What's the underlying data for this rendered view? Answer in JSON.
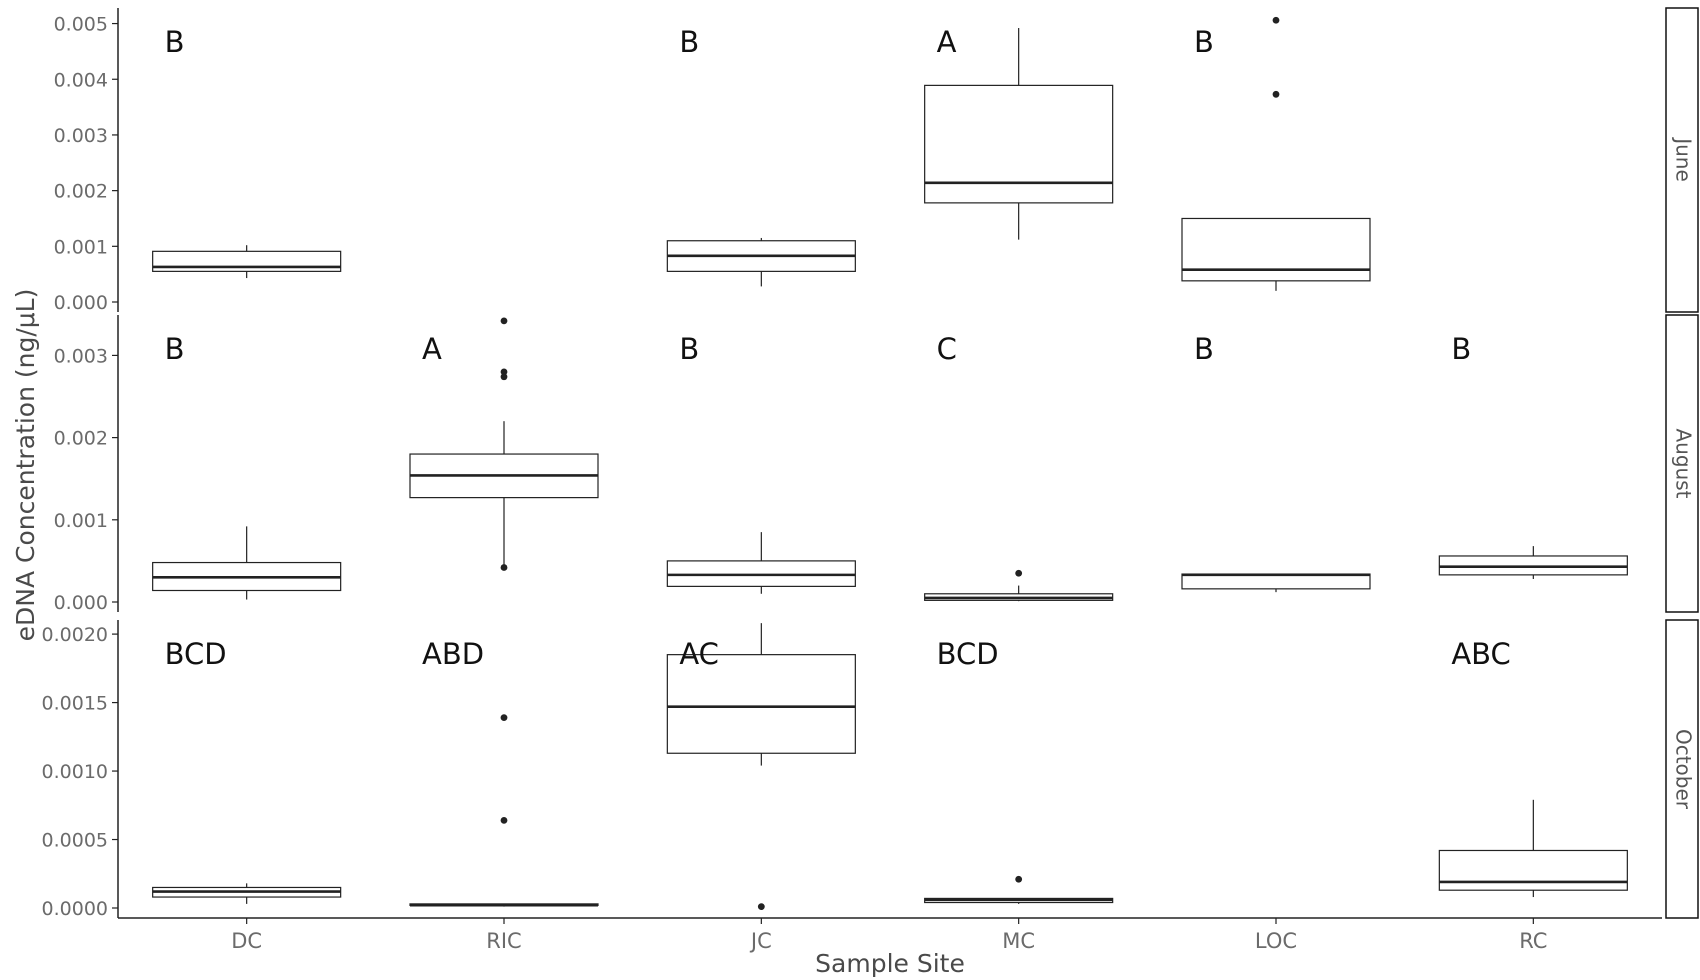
{
  "chart_data": {
    "type": "box",
    "xlabel": "Sample Site",
    "ylabel": "eDNA Concentration (ng/μL)",
    "categories": [
      "DC",
      "RIC",
      "JC",
      "MC",
      "LOC",
      "RC"
    ],
    "colors": {
      "box": "#222222",
      "axis": "#222222",
      "strip_border": "#111111",
      "background": "#ffffff"
    },
    "panels": [
      {
        "strip": "June",
        "ylim": [
          0,
          0.0051
        ],
        "yticks": [
          0.0,
          0.001,
          0.002,
          0.003,
          0.004,
          0.005
        ],
        "ytick_labels": [
          "0.000",
          "0.001",
          "0.002",
          "0.003",
          "0.004",
          "0.005"
        ],
        "letters": {
          "DC": "B",
          "JC": "B",
          "MC": "A",
          "LOC": "B"
        },
        "boxes": [
          {
            "site": "DC",
            "lower": 0.00043,
            "q1": 0.00055,
            "median": 0.00063,
            "q3": 0.00091,
            "upper": 0.00102,
            "outliers": []
          },
          {
            "site": "JC",
            "lower": 0.00028,
            "q1": 0.00055,
            "median": 0.00083,
            "q3": 0.0011,
            "upper": 0.00115,
            "outliers": []
          },
          {
            "site": "MC",
            "lower": 0.00112,
            "q1": 0.00178,
            "median": 0.00214,
            "q3": 0.00389,
            "upper": 0.00492,
            "outliers": []
          },
          {
            "site": "LOC",
            "lower": 0.0002,
            "q1": 0.00038,
            "median": 0.00058,
            "q3": 0.0015,
            "upper": 0.0015,
            "outliers": [
              0.00373,
              0.00506
            ]
          }
        ]
      },
      {
        "strip": "August",
        "ylim": [
          0,
          0.00337
        ],
        "yticks": [
          0.0,
          0.001,
          0.002,
          0.003
        ],
        "ytick_labels": [
          "0.000",
          "0.001",
          "0.002",
          "0.003"
        ],
        "letters": {
          "DC": "B",
          "RIC": "A",
          "JC": "B",
          "MC": "C",
          "LOC": "B",
          "RC": "B"
        },
        "boxes": [
          {
            "site": "DC",
            "lower": 3e-05,
            "q1": 0.00014,
            "median": 0.0003,
            "q3": 0.00048,
            "upper": 0.00092,
            "outliers": []
          },
          {
            "site": "RIC",
            "lower": 0.00042,
            "q1": 0.00127,
            "median": 0.00154,
            "q3": 0.0018,
            "upper": 0.0022,
            "outliers": [
              0.00042,
              0.00274,
              0.0028,
              0.00342
            ]
          },
          {
            "site": "JC",
            "lower": 0.0001,
            "q1": 0.00019,
            "median": 0.00033,
            "q3": 0.0005,
            "upper": 0.00085,
            "outliers": []
          },
          {
            "site": "MC",
            "lower": 1e-05,
            "q1": 2e-05,
            "median": 5e-05,
            "q3": 0.0001,
            "upper": 0.0002,
            "outliers": [
              0.00035
            ]
          },
          {
            "site": "LOC",
            "lower": 0.00012,
            "q1": 0.00016,
            "median": 0.00033,
            "q3": 0.00034,
            "upper": 0.00034,
            "outliers": []
          },
          {
            "site": "RC",
            "lower": 0.00028,
            "q1": 0.00033,
            "median": 0.00043,
            "q3": 0.00056,
            "upper": 0.00068,
            "outliers": []
          }
        ]
      },
      {
        "strip": "October",
        "ylim": [
          0,
          0.00203
        ],
        "yticks": [
          0.0,
          0.0005,
          0.001,
          0.0015,
          0.002
        ],
        "ytick_labels": [
          "0.0000",
          "0.0005",
          "0.0010",
          "0.0015",
          "0.0020"
        ],
        "letters": {
          "DC": "BCD",
          "RIC": "ABD",
          "JC": "AC",
          "MC": "BCD",
          "RC": "ABC"
        },
        "boxes": [
          {
            "site": "DC",
            "lower": 3e-05,
            "q1": 8e-05,
            "median": 0.00012,
            "q3": 0.00015,
            "upper": 0.00018,
            "outliers": []
          },
          {
            "site": "RIC",
            "lower": 1e-05,
            "q1": 2e-05,
            "median": 2e-05,
            "q3": 3e-05,
            "upper": 3e-05,
            "outliers": [
              0.00064,
              0.00139
            ]
          },
          {
            "site": "JC",
            "lower": 0.00104,
            "q1": 0.00113,
            "median": 0.00147,
            "q3": 0.00185,
            "upper": 0.00208,
            "outliers": [
              1e-05
            ]
          },
          {
            "site": "MC",
            "lower": 3e-05,
            "q1": 4e-05,
            "median": 6e-05,
            "q3": 7e-05,
            "upper": 7e-05,
            "outliers": [
              0.00021
            ]
          },
          {
            "site": "RC",
            "lower": 8e-05,
            "q1": 0.00013,
            "median": 0.00019,
            "q3": 0.00042,
            "upper": 0.00079,
            "outliers": []
          }
        ]
      }
    ]
  }
}
